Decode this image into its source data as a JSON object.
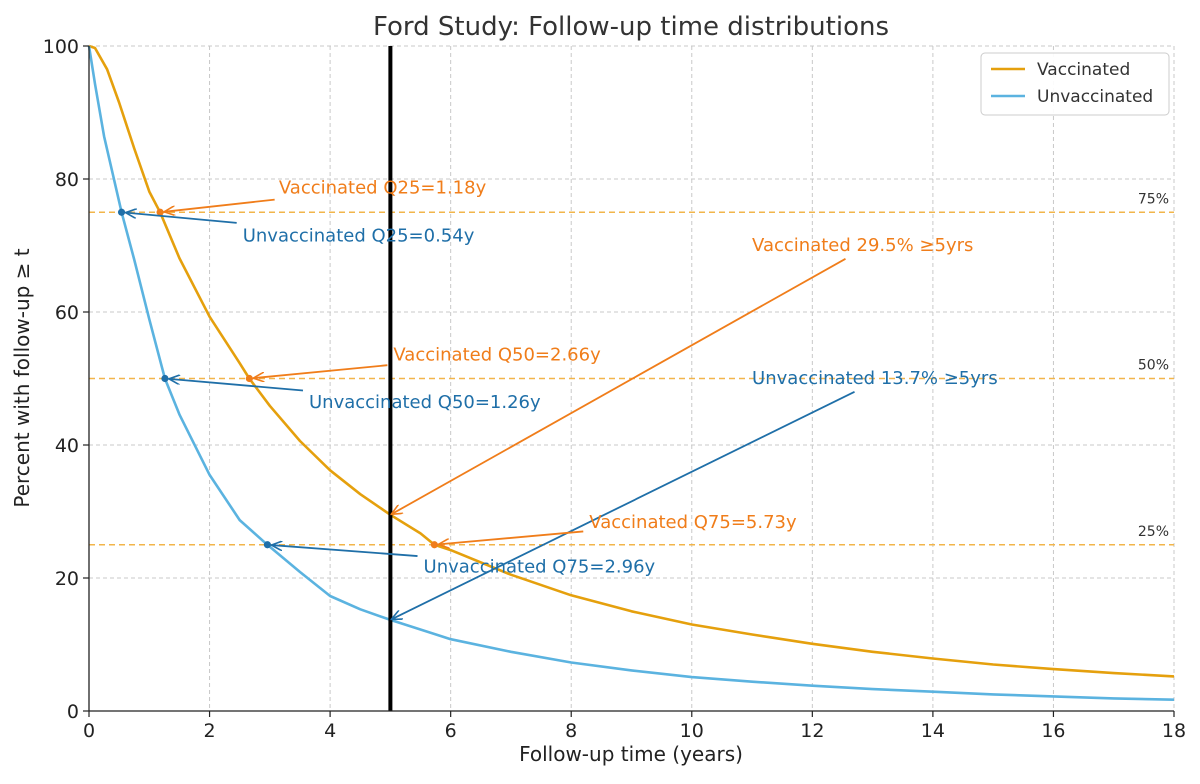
{
  "chart_data": {
    "type": "line",
    "title": "Ford Study: Follow-up time distributions",
    "xlabel": "Follow-up time (years)",
    "ylabel": "Percent with follow-up ≥ t",
    "xlim": [
      0,
      18
    ],
    "ylim": [
      0,
      100
    ],
    "xticks": [
      0,
      2,
      4,
      6,
      8,
      10,
      12,
      14,
      16,
      18
    ],
    "yticks": [
      0,
      20,
      40,
      60,
      80,
      100
    ],
    "grid": true,
    "legend_position": "top-right",
    "series": [
      {
        "name": "Vaccinated",
        "color": "#e5a00d",
        "x": [
          0,
          0.1,
          0.3,
          0.5,
          0.75,
          1.0,
          1.18,
          1.5,
          2.0,
          2.5,
          2.66,
          3.0,
          3.5,
          4.0,
          4.5,
          5.0,
          5.5,
          5.73,
          6.0,
          7.0,
          8.0,
          9.0,
          10.0,
          11.0,
          12.0,
          13.0,
          14.0,
          15.0,
          16.0,
          17.0,
          18.0
        ],
        "values": [
          100,
          99.7,
          96.5,
          91.5,
          84.6,
          78.1,
          75.0,
          68.1,
          59.3,
          52.3,
          50.0,
          45.9,
          40.6,
          36.2,
          32.6,
          29.5,
          26.7,
          25.0,
          24.2,
          20.5,
          17.4,
          15.0,
          13.0,
          11.5,
          10.1,
          8.9,
          7.9,
          7.0,
          6.3,
          5.7,
          5.2
        ]
      },
      {
        "name": "Unvaccinated",
        "color": "#5bb3e0",
        "x": [
          0,
          0.1,
          0.25,
          0.54,
          0.75,
          1.0,
          1.26,
          1.5,
          2.0,
          2.5,
          2.96,
          3.5,
          4.0,
          4.5,
          5.0,
          6.0,
          7.0,
          8.0,
          9.0,
          10.0,
          11.0,
          12.0,
          13.0,
          14.0,
          15.0,
          16.0,
          17.0,
          18.0
        ],
        "values": [
          100,
          94.3,
          86.4,
          75.0,
          67.9,
          58.9,
          50.0,
          44.6,
          35.5,
          28.7,
          25.0,
          20.9,
          17.3,
          15.3,
          13.7,
          10.8,
          8.9,
          7.3,
          6.1,
          5.1,
          4.4,
          3.8,
          3.3,
          2.9,
          2.5,
          2.2,
          1.9,
          1.7
        ]
      }
    ],
    "reference_lines": [
      {
        "y": 75,
        "label": "75%"
      },
      {
        "y": 50,
        "label": "50%"
      },
      {
        "y": 25,
        "label": "25%"
      }
    ],
    "vertical_line": {
      "x": 5
    },
    "annotations": [
      {
        "text": "Vaccinated Q25=1.18y",
        "series": "Vaccinated",
        "point": [
          1.18,
          75.0
        ],
        "text_pos": [
          3.15,
          77.8
        ],
        "arrow_start": [
          3.08,
          76.9
        ],
        "marker": true
      },
      {
        "text": "Unvaccinated Q25=0.54y",
        "series": "Unvaccinated",
        "point": [
          0.54,
          75.0
        ],
        "text_pos": [
          2.55,
          70.6
        ],
        "arrow_start": [
          2.45,
          73.4
        ],
        "marker": true
      },
      {
        "text": "Vaccinated Q50=2.66y",
        "series": "Vaccinated",
        "point": [
          2.66,
          50.0
        ],
        "text_pos": [
          5.05,
          52.7
        ],
        "arrow_start": [
          4.95,
          52.0
        ],
        "marker": true
      },
      {
        "text": "Unvaccinated Q50=1.26y",
        "series": "Unvaccinated",
        "point": [
          1.26,
          50.0
        ],
        "text_pos": [
          3.65,
          45.6
        ],
        "arrow_start": [
          3.55,
          48.2
        ],
        "marker": true
      },
      {
        "text": "Vaccinated 29.5% ≥5yrs",
        "series": "Vaccinated",
        "point": [
          5.0,
          29.5
        ],
        "text_pos": [
          11.0,
          69.2
        ],
        "arrow_start": [
          12.55,
          68.0
        ],
        "marker": false
      },
      {
        "text": "Unvaccinated 13.7% ≥5yrs",
        "series": "Unvaccinated",
        "point": [
          5.0,
          13.7
        ],
        "text_pos": [
          11.0,
          49.2
        ],
        "arrow_start": [
          12.7,
          48.0
        ],
        "marker": false
      },
      {
        "text": "Vaccinated Q75=5.73y",
        "series": "Vaccinated",
        "point": [
          5.73,
          25.0
        ],
        "text_pos": [
          8.3,
          27.5
        ],
        "arrow_start": [
          8.2,
          27.0
        ],
        "marker": true
      },
      {
        "text": "Unvaccinated Q75=2.96y",
        "series": "Unvaccinated",
        "point": [
          2.96,
          25.0
        ],
        "text_pos": [
          5.55,
          20.8
        ],
        "arrow_start": [
          5.45,
          23.3
        ],
        "marker": true
      }
    ]
  }
}
